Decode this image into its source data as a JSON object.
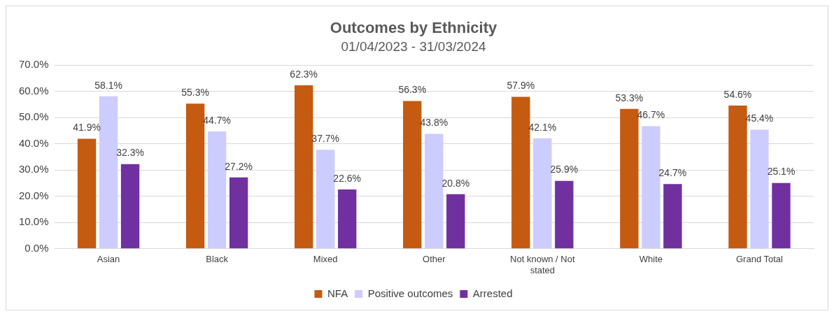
{
  "chart_data": {
    "type": "bar",
    "title": "Outcomes by Ethnicity",
    "subtitle": "01/04/2023 - 31/03/2024",
    "categories": [
      "Asian",
      "Black",
      "Mixed",
      "Other",
      "Not known / Not stated",
      "White",
      "Grand Total"
    ],
    "series": [
      {
        "name": "NFA",
        "color": "#c55a11",
        "values": [
          41.9,
          55.3,
          62.3,
          56.3,
          57.9,
          53.3,
          54.6
        ],
        "value_labels": [
          "41.9%",
          "55.3%",
          "62.3%",
          "56.3%",
          "57.9%",
          "53.3%",
          "54.6%"
        ]
      },
      {
        "name": "Positive outcomes",
        "color": "#ccccff",
        "values": [
          58.1,
          44.7,
          37.7,
          43.8,
          42.1,
          46.7,
          45.4
        ],
        "value_labels": [
          "58.1%",
          "44.7%",
          "37.7%",
          "43.8%",
          "42.1%",
          "46.7%",
          "45.4%"
        ]
      },
      {
        "name": "Arrested",
        "color": "#7030a0",
        "values": [
          32.3,
          27.2,
          22.6,
          20.8,
          25.9,
          24.7,
          25.1
        ],
        "value_labels": [
          "32.3%",
          "27.2%",
          "22.6%",
          "20.8%",
          "25.9%",
          "24.7%",
          "25.1%"
        ]
      }
    ],
    "ylim": [
      0,
      70
    ],
    "yticks": [
      {
        "value": 0,
        "label": "0.0%"
      },
      {
        "value": 10,
        "label": "10.0%"
      },
      {
        "value": 20,
        "label": "20.0%"
      },
      {
        "value": 30,
        "label": "30.0%"
      },
      {
        "value": 40,
        "label": "40.0%"
      },
      {
        "value": 50,
        "label": "50.0%"
      },
      {
        "value": 60,
        "label": "60.0%"
      },
      {
        "value": 70,
        "label": "70.0%"
      }
    ],
    "grid": "y",
    "legend": "bottom"
  }
}
